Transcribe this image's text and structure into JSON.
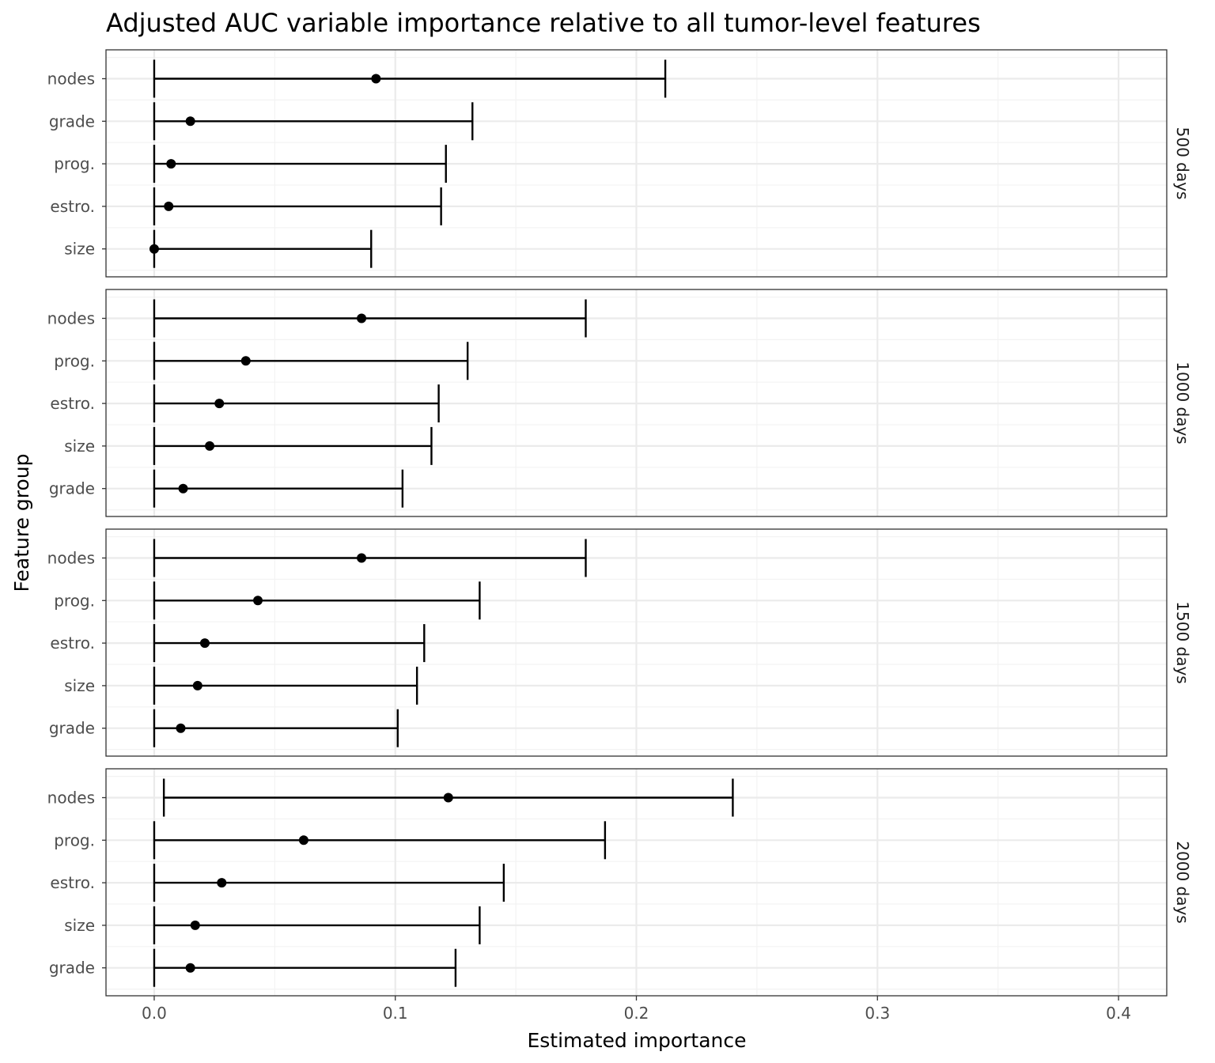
{
  "chart_data": {
    "type": "scatter",
    "subtype": "point-range with error bars, faceted",
    "title": "Adjusted AUC variable importance relative to all tumor-level features",
    "xlabel": "Estimated importance",
    "ylabel": "Feature group",
    "xlim": [
      -0.02,
      0.42
    ],
    "x_ticks": [
      0.0,
      0.1,
      0.2,
      0.3,
      0.4
    ],
    "x_tick_labels": [
      "0.0",
      "0.1",
      "0.2",
      "0.3",
      "0.4"
    ],
    "grid": true,
    "theme": "black-and-white",
    "colors": {
      "marks": "#000000",
      "grid": "#ebebeb",
      "border": "#333333",
      "tick_text": "#4d4d4d"
    },
    "facets": [
      {
        "label": "500 days",
        "rows": [
          {
            "feature": "nodes",
            "estimate": 0.092,
            "lower": 0.0,
            "upper": 0.212
          },
          {
            "feature": "grade",
            "estimate": 0.015,
            "lower": 0.0,
            "upper": 0.132
          },
          {
            "feature": "prog.",
            "estimate": 0.007,
            "lower": 0.0,
            "upper": 0.121
          },
          {
            "feature": "estro.",
            "estimate": 0.006,
            "lower": 0.0,
            "upper": 0.119
          },
          {
            "feature": "size",
            "estimate": 0.0,
            "lower": 0.0,
            "upper": 0.09
          }
        ]
      },
      {
        "label": "1000 days",
        "rows": [
          {
            "feature": "nodes",
            "estimate": 0.086,
            "lower": 0.0,
            "upper": 0.179
          },
          {
            "feature": "prog.",
            "estimate": 0.038,
            "lower": 0.0,
            "upper": 0.13
          },
          {
            "feature": "estro.",
            "estimate": 0.027,
            "lower": 0.0,
            "upper": 0.118
          },
          {
            "feature": "size",
            "estimate": 0.023,
            "lower": 0.0,
            "upper": 0.115
          },
          {
            "feature": "grade",
            "estimate": 0.012,
            "lower": 0.0,
            "upper": 0.103
          }
        ]
      },
      {
        "label": "1500 days",
        "rows": [
          {
            "feature": "nodes",
            "estimate": 0.086,
            "lower": 0.0,
            "upper": 0.179
          },
          {
            "feature": "prog.",
            "estimate": 0.043,
            "lower": 0.0,
            "upper": 0.135
          },
          {
            "feature": "estro.",
            "estimate": 0.021,
            "lower": 0.0,
            "upper": 0.112
          },
          {
            "feature": "size",
            "estimate": 0.018,
            "lower": 0.0,
            "upper": 0.109
          },
          {
            "feature": "grade",
            "estimate": 0.011,
            "lower": 0.0,
            "upper": 0.101
          }
        ]
      },
      {
        "label": "2000 days",
        "rows": [
          {
            "feature": "nodes",
            "estimate": 0.122,
            "lower": 0.004,
            "upper": 0.24
          },
          {
            "feature": "prog.",
            "estimate": 0.062,
            "lower": 0.0,
            "upper": 0.187
          },
          {
            "feature": "estro.",
            "estimate": 0.028,
            "lower": 0.0,
            "upper": 0.145
          },
          {
            "feature": "size",
            "estimate": 0.017,
            "lower": 0.0,
            "upper": 0.135
          },
          {
            "feature": "grade",
            "estimate": 0.015,
            "lower": 0.0,
            "upper": 0.125
          }
        ]
      }
    ]
  }
}
